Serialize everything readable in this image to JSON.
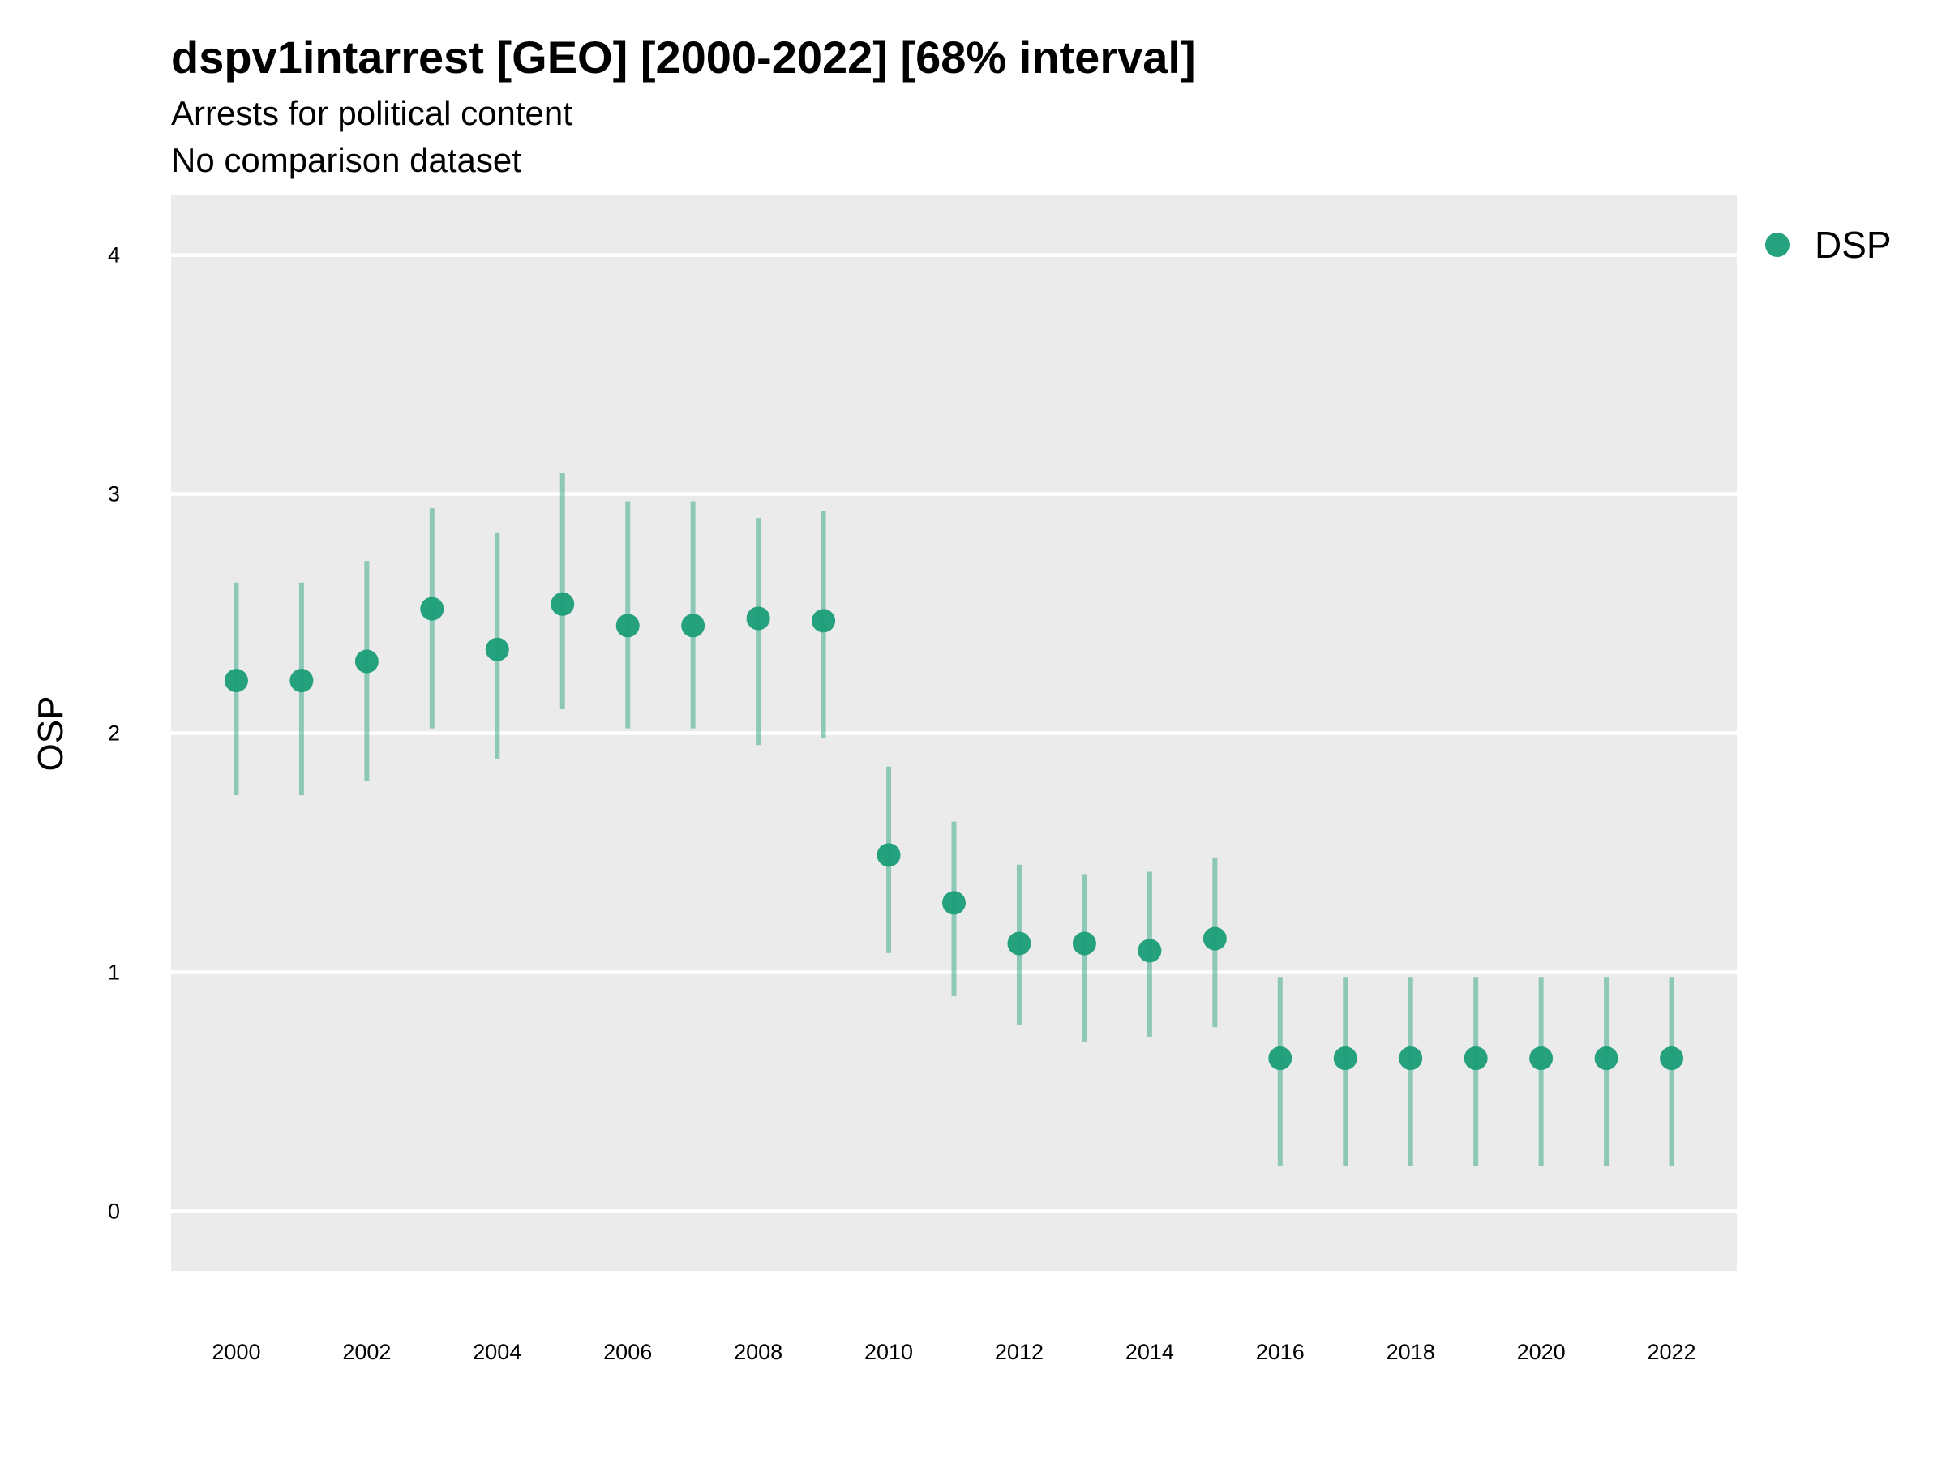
{
  "chart_data": {
    "type": "scatter",
    "title": "dspv1intarrest [GEO] [2000-2022] [68% interval]",
    "subtitle": "Arrests for political content",
    "caption": "No comparison dataset",
    "ylabel": "OSP",
    "xlabel": "",
    "ylim": [
      -0.25,
      4.25
    ],
    "xlim": [
      1999,
      2023
    ],
    "x_ticks": [
      2000,
      2002,
      2004,
      2006,
      2008,
      2010,
      2012,
      2014,
      2016,
      2018,
      2020,
      2022
    ],
    "y_ticks": [
      0,
      1,
      2,
      3,
      4
    ],
    "grid": true,
    "legend_position": "right",
    "series": [
      {
        "name": "DSP",
        "color": "#1a9e77",
        "points": [
          {
            "x": 2000,
            "y": 2.22,
            "lower": 1.74,
            "upper": 2.63
          },
          {
            "x": 2001,
            "y": 2.22,
            "lower": 1.74,
            "upper": 2.63
          },
          {
            "x": 2002,
            "y": 2.3,
            "lower": 1.8,
            "upper": 2.72
          },
          {
            "x": 2003,
            "y": 2.52,
            "lower": 2.02,
            "upper": 2.94
          },
          {
            "x": 2004,
            "y": 2.35,
            "lower": 1.89,
            "upper": 2.84
          },
          {
            "x": 2005,
            "y": 2.54,
            "lower": 2.1,
            "upper": 3.09
          },
          {
            "x": 2006,
            "y": 2.45,
            "lower": 2.02,
            "upper": 2.97
          },
          {
            "x": 2007,
            "y": 2.45,
            "lower": 2.02,
            "upper": 2.97
          },
          {
            "x": 2008,
            "y": 2.48,
            "lower": 1.95,
            "upper": 2.9
          },
          {
            "x": 2009,
            "y": 2.47,
            "lower": 1.98,
            "upper": 2.93
          },
          {
            "x": 2010,
            "y": 1.49,
            "lower": 1.08,
            "upper": 1.86
          },
          {
            "x": 2011,
            "y": 1.29,
            "lower": 0.9,
            "upper": 1.63
          },
          {
            "x": 2012,
            "y": 1.12,
            "lower": 0.78,
            "upper": 1.45
          },
          {
            "x": 2013,
            "y": 1.12,
            "lower": 0.71,
            "upper": 1.41
          },
          {
            "x": 2014,
            "y": 1.09,
            "lower": 0.73,
            "upper": 1.42
          },
          {
            "x": 2015,
            "y": 1.14,
            "lower": 0.77,
            "upper": 1.48
          },
          {
            "x": 2016,
            "y": 0.64,
            "lower": 0.19,
            "upper": 0.98
          },
          {
            "x": 2017,
            "y": 0.64,
            "lower": 0.19,
            "upper": 0.98
          },
          {
            "x": 2018,
            "y": 0.64,
            "lower": 0.19,
            "upper": 0.98
          },
          {
            "x": 2019,
            "y": 0.64,
            "lower": 0.19,
            "upper": 0.98
          },
          {
            "x": 2020,
            "y": 0.64,
            "lower": 0.19,
            "upper": 0.98
          },
          {
            "x": 2021,
            "y": 0.64,
            "lower": 0.19,
            "upper": 0.98
          },
          {
            "x": 2022,
            "y": 0.64,
            "lower": 0.19,
            "upper": 0.98
          }
        ]
      }
    ]
  }
}
